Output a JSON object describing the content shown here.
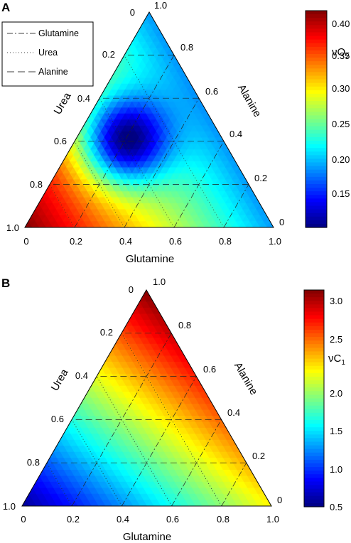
{
  "chart_data": [
    {
      "type": "ternary-contour",
      "panel_label": "A",
      "axes": {
        "bottom": {
          "label": "Glutamine",
          "ticks": [
            "0",
            "0.2",
            "0.4",
            "0.6",
            "0.8",
            "1.0"
          ]
        },
        "left": {
          "label": "Urea",
          "ticks": [
            "0",
            "0.2",
            "0.4",
            "0.6",
            "0.8",
            "1.0"
          ]
        },
        "right": {
          "label": "Alanine",
          "ticks": [
            "1.0",
            "0.8",
            "0.6",
            "0.4",
            "0.2",
            "0"
          ]
        }
      },
      "grid": true,
      "legend": {
        "position": "top-left",
        "entries": [
          {
            "label": "Glutamine",
            "style": "dash-dot"
          },
          {
            "label": "Urea",
            "style": "dotted"
          },
          {
            "label": "Alanine",
            "style": "dashed"
          }
        ]
      },
      "colorbar": {
        "label_main": "ν",
        "label_sub_base": "O",
        "label_subscript": "2",
        "range": [
          0.1,
          0.41
        ],
        "ticks": [
          "0.15",
          "0.20",
          "0.25",
          "0.30",
          "0.35",
          "0.40"
        ],
        "colormap": "jet"
      },
      "surface": {
        "vertex_values": {
          "glutamine": 0.185,
          "urea": 0.41,
          "alanine": 0.185
        },
        "minimum": {
          "value": 0.1,
          "glutamine": 0.2,
          "urea": 0.4,
          "alanine": 0.4
        }
      }
    },
    {
      "type": "ternary-contour",
      "panel_label": "B",
      "axes": {
        "bottom": {
          "label": "Glutamine",
          "ticks": [
            "0",
            "0.2",
            "0.4",
            "0.6",
            "0.8",
            "1.0"
          ]
        },
        "left": {
          "label": "Urea",
          "ticks": [
            "0",
            "0.2",
            "0.4",
            "0.6",
            "0.8",
            "1.0"
          ]
        },
        "right": {
          "label": "Alanine",
          "ticks": [
            "1.0",
            "0.8",
            "0.6",
            "0.4",
            "0.2",
            "0"
          ]
        }
      },
      "grid": true,
      "colorbar": {
        "label_main": "ν",
        "label_sub_base": "C",
        "label_subscript": "1",
        "range": [
          0.5,
          3.35
        ],
        "ticks": [
          "0.5",
          "1.0",
          "1.5",
          "2.0",
          "2.5",
          "3.0"
        ],
        "colormap": "jet"
      },
      "surface": {
        "vertex_values": {
          "glutamine": 2.3,
          "urea": 0.55,
          "alanine": 3.35
        }
      }
    }
  ]
}
